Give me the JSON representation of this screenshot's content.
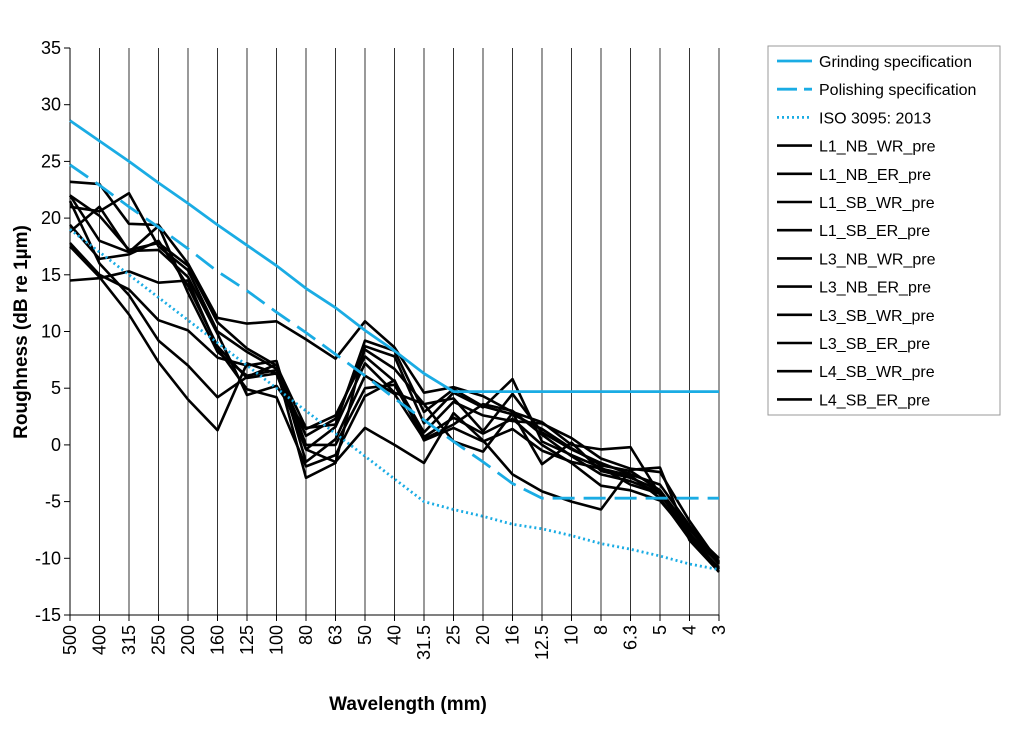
{
  "chart_data": {
    "type": "line",
    "title": "",
    "xlabel": "Wavelength (mm)",
    "ylabel": "Roughness (dB re 1µm)",
    "ylim": [
      -15,
      35
    ],
    "yticks": [
      35,
      30,
      25,
      20,
      15,
      10,
      5,
      0,
      -5,
      -10,
      -15
    ],
    "grid": "vertical",
    "legend_position": "right",
    "categories": [
      "500",
      "400",
      "315",
      "250",
      "200",
      "160",
      "125",
      "100",
      "80",
      "63",
      "50",
      "40",
      "31.5",
      "25",
      "20",
      "16",
      "12.5",
      "10",
      "8",
      "6.3",
      "5",
      "4",
      "3"
    ],
    "series": [
      {
        "name": "Grinding specification",
        "style": "solid",
        "color": "#1aace4",
        "values": [
          28.6,
          26.8,
          25.0,
          23.1,
          21.3,
          19.4,
          17.6,
          15.8,
          13.8,
          12.1,
          10.1,
          8.3,
          6.3,
          4.7,
          4.7,
          4.7,
          4.7,
          4.7,
          4.7,
          4.7,
          4.7,
          4.7,
          4.7
        ]
      },
      {
        "name": "Polishing specification",
        "style": "dashed",
        "color": "#1aace4",
        "values": [
          24.7,
          22.9,
          21.0,
          19.2,
          17.3,
          15.3,
          13.6,
          11.7,
          9.9,
          8.0,
          6.1,
          4.1,
          2.2,
          0.3,
          -1.5,
          -3.4,
          -4.7,
          -4.7,
          -4.7,
          -4.7,
          -4.7,
          -4.7,
          -4.7
        ]
      },
      {
        "name": "ISO 3095: 2013",
        "style": "dotted",
        "color": "#1aace4",
        "values": [
          19.0,
          17.0,
          15.0,
          13.0,
          11.0,
          9.0,
          7.0,
          5.0,
          3.0,
          1.0,
          -1.0,
          -3.0,
          -5.0,
          -5.7,
          -6.3,
          -7.0,
          -7.4,
          -8.0,
          -8.7,
          -9.2,
          -9.8,
          -10.5,
          -11.0
        ]
      },
      {
        "name": "L1_NB_WR_pre",
        "style": "solid",
        "color": "#000000",
        "values": [
          23.2,
          23.0,
          19.5,
          19.4,
          16.0,
          11.2,
          10.7,
          10.9,
          9.3,
          7.6,
          10.9,
          8.6,
          4.6,
          5.1,
          4.3,
          2.9,
          2.0,
          0.0,
          -0.4,
          -0.2,
          -4.4,
          -7.5,
          -10.0
        ]
      },
      {
        "name": "L1_NB_ER_pre",
        "style": "solid",
        "color": "#000000",
        "values": [
          22.0,
          20.2,
          17.2,
          17.8,
          15.8,
          10.8,
          8.5,
          7.0,
          1.5,
          1.8,
          9.2,
          8.3,
          2.9,
          4.9,
          3.4,
          2.7,
          1.4,
          -0.3,
          -1.8,
          -2.3,
          -4.0,
          -7.4,
          -10.5
        ]
      },
      {
        "name": "L1_SB_WR_pre",
        "style": "solid",
        "color": "#000000",
        "values": [
          21.0,
          20.6,
          22.2,
          17.5,
          15.4,
          10.0,
          8.2,
          6.7,
          -2.9,
          -1.6,
          8.7,
          7.8,
          1.9,
          4.6,
          3.3,
          5.8,
          0.3,
          -0.9,
          -2.0,
          -3.5,
          -4.3,
          -7.8,
          -10.5
        ]
      },
      {
        "name": "L1_SB_ER_pre",
        "style": "solid",
        "color": "#000000",
        "values": [
          18.8,
          21.0,
          17.1,
          17.2,
          14.8,
          9.8,
          4.4,
          5.2,
          1.4,
          2.6,
          7.8,
          5.6,
          1.1,
          3.8,
          2.6,
          2.1,
          1.9,
          0.6,
          -1.2,
          -2.1,
          -2.4,
          -6.7,
          -10.4
        ]
      },
      {
        "name": "L3_NB_WR_pre",
        "style": "solid",
        "color": "#000000",
        "values": [
          22.0,
          18.0,
          17.0,
          19.3,
          13.4,
          8.2,
          6.1,
          6.6,
          0.8,
          2.3,
          8.4,
          6.7,
          3.6,
          4.1,
          1.2,
          4.5,
          1.1,
          -0.4,
          -1.6,
          -2.6,
          -3.5,
          -7.1,
          -10.3
        ]
      },
      {
        "name": "L3_NB_ER_pre",
        "style": "solid",
        "color": "#000000",
        "values": [
          19.4,
          16.4,
          16.8,
          18.0,
          14.0,
          8.7,
          5.9,
          6.3,
          -0.4,
          1.6,
          7.2,
          4.6,
          3.6,
          0.3,
          -0.6,
          2.8,
          -1.7,
          0.2,
          -2.3,
          -2.9,
          -4.0,
          -7.9,
          -11.0
        ]
      },
      {
        "name": "L3_SB_WR_pre",
        "style": "solid",
        "color": "#000000",
        "values": [
          17.8,
          15.0,
          13.7,
          11.0,
          10.1,
          7.7,
          7.0,
          7.4,
          -1.5,
          0.5,
          6.1,
          4.5,
          0.5,
          1.8,
          3.6,
          3.0,
          0.9,
          -1.0,
          -2.6,
          -3.2,
          -4.2,
          -8.3,
          -10.8
        ]
      },
      {
        "name": "L3_SB_ER_pre",
        "style": "solid",
        "color": "#000000",
        "values": [
          14.5,
          14.7,
          15.3,
          14.3,
          14.5,
          8.5,
          4.9,
          4.2,
          -1.9,
          -0.9,
          4.3,
          5.7,
          0.4,
          1.5,
          0.3,
          1.4,
          -0.5,
          -1.5,
          -2.1,
          -2.7,
          -4.7,
          -8.3,
          -11.2
        ]
      },
      {
        "name": "L4_SB_WR_pre",
        "style": "solid",
        "color": "#000000",
        "values": [
          21.5,
          16.0,
          13.2,
          9.2,
          7.0,
          4.2,
          6.0,
          7.1,
          0.0,
          0.0,
          5.0,
          5.3,
          0.7,
          2.4,
          1.0,
          2.3,
          0.0,
          -1.6,
          -3.6,
          -4.0,
          -4.9,
          -8.0,
          -10.9
        ]
      },
      {
        "name": "L4_SB_ER_pre",
        "style": "solid",
        "color": "#000000",
        "values": [
          17.5,
          14.8,
          11.5,
          7.3,
          4.0,
          1.3,
          7.2,
          6.3,
          -0.4,
          -1.5,
          1.5,
          0.0,
          -1.6,
          2.8,
          0.4,
          -2.6,
          -4.1,
          -5.0,
          -5.7,
          -2.2,
          -2.0,
          -8.4,
          -11.2
        ]
      }
    ]
  }
}
